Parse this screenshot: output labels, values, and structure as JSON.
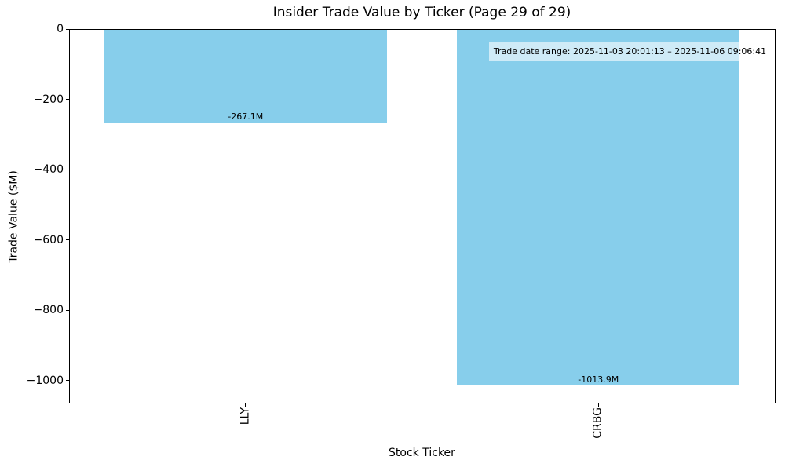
{
  "chart_data": {
    "type": "bar",
    "title": "Insider Trade Value by Ticker (Page 29 of 29)",
    "xlabel": "Stock Ticker",
    "ylabel": "Trade Value ($M)",
    "categories": [
      "LLY",
      "CRBG"
    ],
    "values": [
      -267.1,
      -1013.9
    ],
    "bar_labels": [
      "-267.1M",
      "-1013.9M"
    ],
    "bar_color": "#87CEEB",
    "ylim": [
      -1064,
      0
    ],
    "yticks": [
      0,
      -200,
      -400,
      -600,
      -800,
      -1000
    ],
    "ytick_labels": [
      "0",
      "−200",
      "−400",
      "−600",
      "−800",
      "−1000"
    ],
    "grid": false,
    "legend": null,
    "bar_width_fraction": 0.8,
    "annotation": {
      "text": "Trade date range: 2025-11-03 20:01:13 – 2025-11-06 09:06:41"
    }
  }
}
